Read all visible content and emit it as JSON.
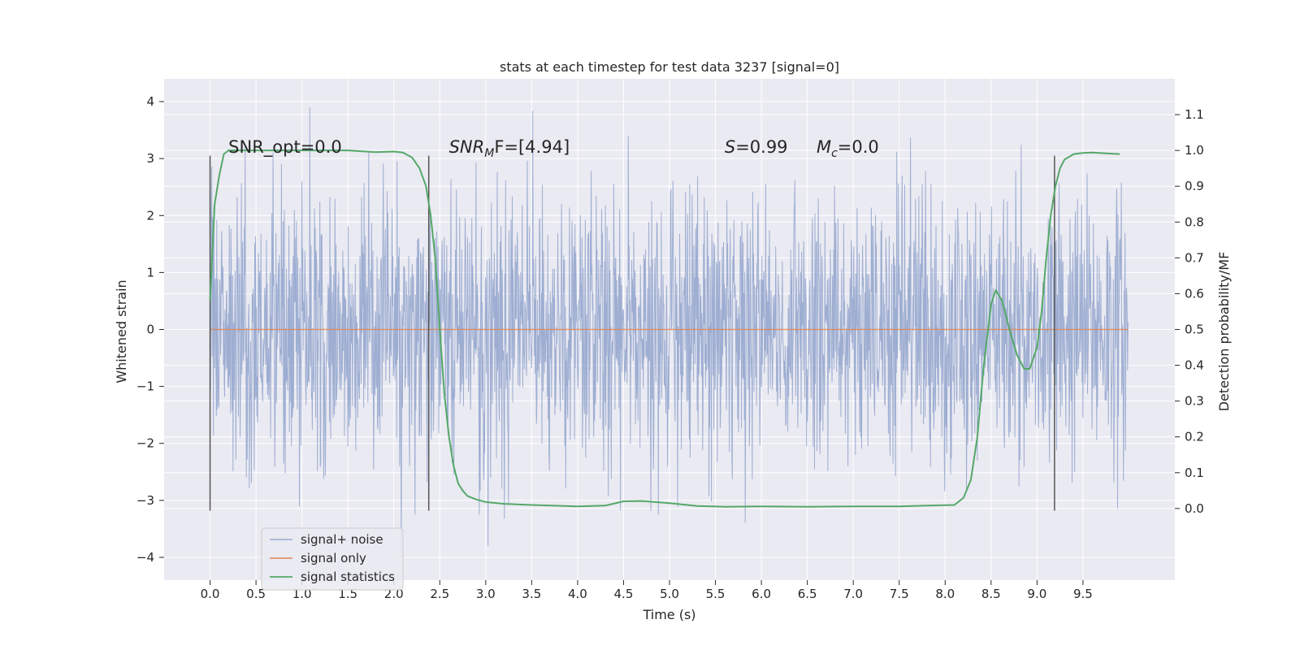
{
  "chart_data": {
    "type": "line",
    "title": "stats at each timestep for test data 3237 [signal=0]",
    "xlabel": "Time (s)",
    "ylabel_left": "Whitened strain",
    "ylabel_right": "Detection probability/MF",
    "xlim": [
      -0.5,
      10.5
    ],
    "ylim_left": [
      -4.4,
      4.4
    ],
    "ylim_right": [
      -0.2,
      1.2
    ],
    "x_ticks": [
      0.0,
      0.5,
      1.0,
      1.5,
      2.0,
      2.5,
      3.0,
      3.5,
      4.0,
      4.5,
      5.0,
      5.5,
      6.0,
      6.5,
      7.0,
      7.5,
      8.0,
      8.5,
      9.0,
      9.5
    ],
    "x_tick_labels": [
      "0.0",
      "0.5",
      "1.0",
      "1.5",
      "2.0",
      "2.5",
      "3.0",
      "3.5",
      "4.0",
      "4.5",
      "5.0",
      "5.5",
      "6.0",
      "6.5",
      "7.0",
      "7.5",
      "8.0",
      "8.5",
      "9.0",
      "9.5"
    ],
    "y_left_ticks": [
      -4,
      -3,
      -2,
      -1,
      0,
      1,
      2,
      3,
      4
    ],
    "y_left_tick_labels": [
      "−4",
      "−3",
      "−2",
      "−1",
      "0",
      "1",
      "2",
      "3",
      "4"
    ],
    "y_right_ticks": [
      0.0,
      0.1,
      0.2,
      0.3,
      0.4,
      0.5,
      0.6,
      0.7,
      0.8,
      0.9,
      1.0,
      1.1
    ],
    "y_right_tick_labels": [
      "0.0",
      "0.1",
      "0.2",
      "0.3",
      "0.4",
      "0.5",
      "0.6",
      "0.7",
      "0.8",
      "0.9",
      "1.0",
      "1.1"
    ],
    "grid": true,
    "legend_position": "lower-left",
    "legend": [
      "signal+ noise",
      "signal only",
      "signal statistics"
    ],
    "colors": {
      "background": "#eaeaf2",
      "grid": "#ffffff",
      "noise": "#9aabd0",
      "signal": "#dd8452",
      "statistics": "#55a868",
      "vline": "#555555"
    },
    "series": [
      {
        "name": "signal+ noise",
        "axis": "left",
        "x_range": [
          0.0,
          9.99
        ],
        "amplitude_typical": 1.2,
        "max_value": 3.9,
        "min_value": -4.0
      },
      {
        "name": "signal only",
        "axis": "left",
        "x": [
          0.0,
          9.99
        ],
        "y": [
          0.0,
          0.0
        ]
      },
      {
        "name": "signal statistics",
        "axis": "right",
        "x": [
          0.0,
          0.05,
          0.1,
          0.15,
          0.2,
          0.3,
          0.5,
          0.8,
          1.2,
          1.5,
          1.8,
          2.0,
          2.1,
          2.2,
          2.28,
          2.35,
          2.4,
          2.45,
          2.5,
          2.55,
          2.6,
          2.65,
          2.7,
          2.75,
          2.8,
          2.9,
          3.0,
          3.2,
          3.5,
          4.0,
          4.3,
          4.5,
          4.7,
          4.8,
          5.0,
          5.3,
          5.6,
          6.0,
          6.5,
          7.0,
          7.5,
          7.8,
          8.1,
          8.2,
          8.28,
          8.35,
          8.42,
          8.5,
          8.55,
          8.62,
          8.7,
          8.78,
          8.86,
          8.92,
          9.0,
          9.05,
          9.1,
          9.15,
          9.2,
          9.25,
          9.3,
          9.4,
          9.5,
          9.6,
          9.75,
          9.9
        ],
        "y": [
          0.58,
          0.85,
          0.93,
          0.99,
          1.0,
          1.0,
          1.0,
          1.0,
          1.0,
          1.0,
          0.995,
          0.997,
          0.994,
          0.98,
          0.95,
          0.9,
          0.82,
          0.7,
          0.5,
          0.32,
          0.2,
          0.12,
          0.07,
          0.05,
          0.035,
          0.025,
          0.018,
          0.013,
          0.01,
          0.006,
          0.008,
          0.02,
          0.021,
          0.019,
          0.015,
          0.007,
          0.005,
          0.006,
          0.005,
          0.006,
          0.006,
          0.008,
          0.01,
          0.03,
          0.08,
          0.2,
          0.4,
          0.57,
          0.61,
          0.58,
          0.5,
          0.43,
          0.39,
          0.39,
          0.45,
          0.55,
          0.7,
          0.82,
          0.9,
          0.95,
          0.975,
          0.99,
          0.993,
          0.994,
          0.992,
          0.99
        ]
      }
    ],
    "vlines": [
      {
        "x": 0.0,
        "ymin": -3.18,
        "ymax": 3.05
      },
      {
        "x": 2.38,
        "ymin": -3.18,
        "ymax": 3.05
      },
      {
        "x": 9.19,
        "ymin": -3.18,
        "ymax": 3.05
      }
    ],
    "annotations": [
      {
        "x": 0.2,
        "y": 3.1,
        "text": "SNR_opt=0.0",
        "style": "normal"
      },
      {
        "x": 2.6,
        "y": 3.1,
        "text_main": "SNR",
        "text_sub": "M",
        "text_rest": "F=[4.94]",
        "style": "italic-sub"
      },
      {
        "x": 5.6,
        "y": 3.1,
        "text_main": "S",
        "text_sub": "",
        "text_rest": "=0.99",
        "style": "italic-sub"
      },
      {
        "x": 6.6,
        "y": 3.1,
        "text_main": "M",
        "text_sub": "c",
        "text_rest": "=0.0",
        "style": "italic-sub"
      }
    ]
  }
}
